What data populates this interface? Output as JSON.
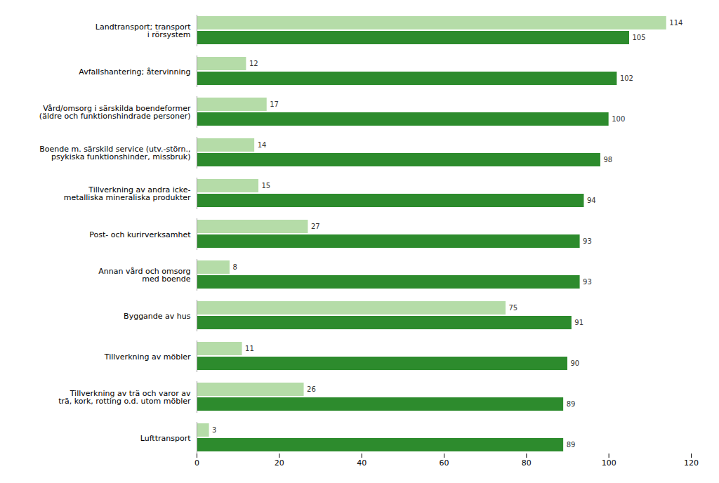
{
  "chart_data": {
    "type": "bar",
    "orientation": "horizontal",
    "categories": [
      "Landtransport; transport\ni rörsystem",
      "Avfallshantering; återvinning",
      "Vård/omsorg i särskilda boendeformer\n(äldre och funktionshindrade personer)",
      "Boende m. särskild service (utv.-störn.,\npsykiska funktionshinder, missbruk)",
      "Tillverkning av andra icke-\nmetalliska mineraliska produkter",
      "Post- och kurirverksamhet",
      "Annan vård och omsorg\nmed boende",
      "Byggande av hus",
      "Tillverkning av möbler",
      "Tillverkning av trä och varor av\nträ, kork, rotting o.d. utom möbler",
      "Lufttransport"
    ],
    "series": [
      {
        "color": "#b5dca8",
        "values": [
          114,
          12,
          17,
          14,
          15,
          27,
          8,
          75,
          11,
          26,
          3
        ]
      },
      {
        "color": "#2d8b2d",
        "values": [
          105,
          102,
          100,
          98,
          94,
          93,
          93,
          91,
          90,
          89,
          89
        ]
      }
    ],
    "xlim": [
      0,
      120
    ],
    "xticks": [
      0,
      20,
      40,
      60,
      80,
      100,
      120
    ],
    "grid": false,
    "data_labels": true
  }
}
